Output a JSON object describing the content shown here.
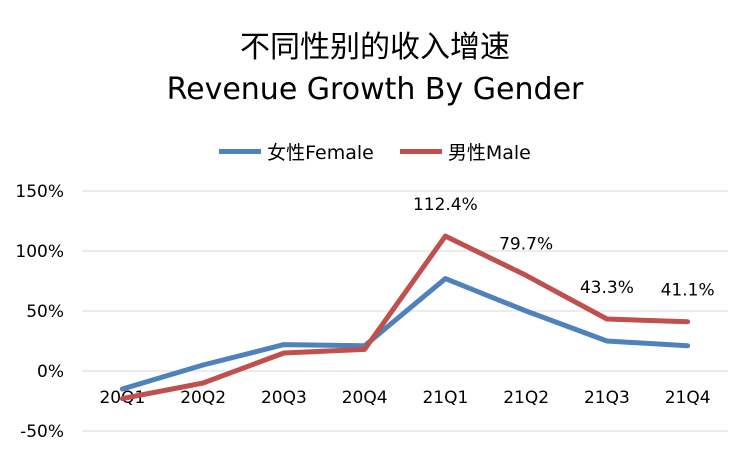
{
  "chart_data": {
    "type": "line",
    "title": "不同性别的收入增速",
    "subtitle": "Revenue Growth By Gender",
    "xlabel": "",
    "ylabel": "",
    "categories": [
      "20Q1",
      "20Q2",
      "20Q3",
      "20Q4",
      "21Q1",
      "21Q2",
      "21Q3",
      "21Q4"
    ],
    "ylim": [
      -50,
      150
    ],
    "yticks": [
      -50,
      0,
      50,
      100,
      150
    ],
    "ytick_labels": [
      "-50%",
      "0%",
      "50%",
      "100%",
      "150%"
    ],
    "grid": true,
    "legend_position": "top",
    "series": [
      {
        "name": "女性Female",
        "color": "#4F81BD",
        "values": [
          -15,
          5,
          22,
          21,
          77,
          50,
          25,
          21
        ]
      },
      {
        "name": "男性Male",
        "color": "#C0504D",
        "values": [
          -23,
          -10,
          15,
          18,
          112.4,
          79.7,
          43.3,
          41.1
        ],
        "data_labels": [
          null,
          null,
          null,
          null,
          "112.4%",
          "79.7%",
          "43.3%",
          "41.1%"
        ]
      }
    ]
  }
}
